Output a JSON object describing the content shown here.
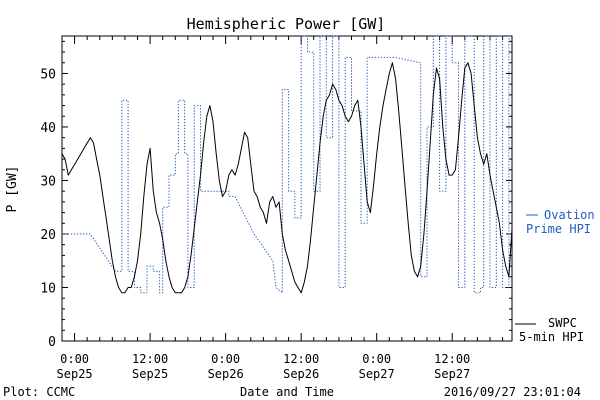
{
  "chart_data": {
    "type": "line",
    "title": "Hemispheric Power [GW]",
    "xlabel": "Date and Time",
    "ylabel": "P [GW]",
    "ylim": [
      0,
      57
    ],
    "xlim_hours": [
      -2.0,
      69.5
    ],
    "yticks": [
      0,
      10,
      20,
      30,
      40,
      50
    ],
    "xticks": [
      {
        "hour": 0,
        "time": "0:00",
        "date": "Sep25"
      },
      {
        "hour": 12,
        "time": "12:00",
        "date": "Sep25"
      },
      {
        "hour": 24,
        "time": "0:00",
        "date": "Sep26"
      },
      {
        "hour": 36,
        "time": "12:00",
        "date": "Sep26"
      },
      {
        "hour": 48,
        "time": "0:00",
        "date": "Sep27"
      },
      {
        "hour": 60,
        "time": "12:00",
        "date": "Sep27"
      }
    ],
    "grid": false,
    "legend_position": "right",
    "series": [
      {
        "name": "SWPC 5-min HPI",
        "legend_line1": "SWPC",
        "legend_line2": "5-min HPI",
        "color": "#000000",
        "style": "solid",
        "points": [
          [
            -2.0,
            35
          ],
          [
            -1.5,
            34
          ],
          [
            -1.0,
            31
          ],
          [
            -0.5,
            32
          ],
          [
            0.0,
            33
          ],
          [
            0.5,
            34
          ],
          [
            1.0,
            35
          ],
          [
            1.5,
            36
          ],
          [
            2.0,
            37
          ],
          [
            2.5,
            38
          ],
          [
            3.0,
            37
          ],
          [
            3.5,
            34
          ],
          [
            4.0,
            31
          ],
          [
            4.5,
            27
          ],
          [
            5.0,
            23
          ],
          [
            5.5,
            19
          ],
          [
            6.0,
            15
          ],
          [
            6.5,
            12
          ],
          [
            7.0,
            10
          ],
          [
            7.5,
            9
          ],
          [
            8.0,
            9
          ],
          [
            8.5,
            10
          ],
          [
            9.0,
            10
          ],
          [
            9.5,
            12
          ],
          [
            10.0,
            15
          ],
          [
            10.5,
            20
          ],
          [
            11.0,
            27
          ],
          [
            11.5,
            33
          ],
          [
            12.0,
            36
          ],
          [
            12.5,
            28
          ],
          [
            13.0,
            24
          ],
          [
            13.5,
            22
          ],
          [
            14.0,
            19
          ],
          [
            14.5,
            15
          ],
          [
            15.0,
            12
          ],
          [
            15.5,
            10
          ],
          [
            16.0,
            9
          ],
          [
            16.5,
            9
          ],
          [
            17.0,
            9
          ],
          [
            17.5,
            10
          ],
          [
            18.0,
            12
          ],
          [
            18.5,
            16
          ],
          [
            19.0,
            21
          ],
          [
            19.5,
            26
          ],
          [
            20.0,
            31
          ],
          [
            20.5,
            37
          ],
          [
            21.0,
            42
          ],
          [
            21.5,
            44
          ],
          [
            22.0,
            41
          ],
          [
            22.5,
            35
          ],
          [
            23.0,
            30
          ],
          [
            23.5,
            27
          ],
          [
            24.0,
            28
          ],
          [
            24.5,
            31
          ],
          [
            25.0,
            32
          ],
          [
            25.5,
            31
          ],
          [
            26.0,
            33
          ],
          [
            26.5,
            36
          ],
          [
            27.0,
            39
          ],
          [
            27.5,
            38
          ],
          [
            28.0,
            33
          ],
          [
            28.5,
            28
          ],
          [
            29.0,
            27
          ],
          [
            29.5,
            25
          ],
          [
            30.0,
            24
          ],
          [
            30.5,
            22
          ],
          [
            31.0,
            26
          ],
          [
            31.5,
            27
          ],
          [
            32.0,
            25
          ],
          [
            32.5,
            26
          ],
          [
            33.0,
            20
          ],
          [
            33.5,
            17
          ],
          [
            34.0,
            15
          ],
          [
            34.5,
            13
          ],
          [
            35.0,
            11
          ],
          [
            35.5,
            10
          ],
          [
            36.0,
            9
          ],
          [
            36.5,
            11
          ],
          [
            37.0,
            14
          ],
          [
            37.5,
            19
          ],
          [
            38.0,
            25
          ],
          [
            38.5,
            31
          ],
          [
            39.0,
            37
          ],
          [
            39.5,
            42
          ],
          [
            40.0,
            45
          ],
          [
            40.5,
            46
          ],
          [
            41.0,
            48
          ],
          [
            41.5,
            47
          ],
          [
            42.0,
            45
          ],
          [
            42.5,
            44
          ],
          [
            43.0,
            42
          ],
          [
            43.5,
            41
          ],
          [
            44.0,
            42
          ],
          [
            44.5,
            44
          ],
          [
            45.0,
            45
          ],
          [
            45.5,
            40
          ],
          [
            46.0,
            33
          ],
          [
            46.5,
            26
          ],
          [
            47.0,
            24
          ],
          [
            47.5,
            29
          ],
          [
            48.0,
            35
          ],
          [
            48.5,
            40
          ],
          [
            49.0,
            44
          ],
          [
            49.5,
            47
          ],
          [
            50.0,
            50
          ],
          [
            50.5,
            52
          ],
          [
            51.0,
            49
          ],
          [
            51.5,
            43
          ],
          [
            52.0,
            36
          ],
          [
            52.5,
            29
          ],
          [
            53.0,
            22
          ],
          [
            53.5,
            16
          ],
          [
            54.0,
            13
          ],
          [
            54.5,
            12
          ],
          [
            55.0,
            14
          ],
          [
            55.5,
            20
          ],
          [
            56.0,
            28
          ],
          [
            56.5,
            37
          ],
          [
            57.0,
            46
          ],
          [
            57.5,
            51
          ],
          [
            58.0,
            49
          ],
          [
            58.5,
            40
          ],
          [
            59.0,
            34
          ],
          [
            59.5,
            31
          ],
          [
            60.0,
            31
          ],
          [
            60.5,
            32
          ],
          [
            61.0,
            38
          ],
          [
            61.5,
            45
          ],
          [
            62.0,
            51
          ],
          [
            62.5,
            52
          ],
          [
            63.0,
            50
          ],
          [
            63.5,
            44
          ],
          [
            64.0,
            38
          ],
          [
            64.5,
            35
          ],
          [
            65.0,
            33
          ],
          [
            65.5,
            35
          ],
          [
            66.0,
            31
          ],
          [
            66.5,
            28
          ],
          [
            67.0,
            25
          ],
          [
            67.5,
            22
          ],
          [
            68.0,
            17
          ],
          [
            68.5,
            14
          ],
          [
            69.0,
            12
          ],
          [
            69.5,
            21
          ]
        ]
      },
      {
        "name": "Ovation Prime HPI",
        "legend_line1": "Ovation",
        "legend_line2": "Prime HPI",
        "color": "#1f5fbf",
        "style": "dotted",
        "points": [
          [
            -2.0,
            20
          ],
          [
            2.5,
            20
          ],
          [
            6.5,
            13
          ],
          [
            7.5,
            13
          ],
          [
            7.5,
            45
          ],
          [
            8.5,
            45
          ],
          [
            8.5,
            13
          ],
          [
            9.5,
            13
          ],
          [
            9.5,
            10
          ],
          [
            10.5,
            10
          ],
          [
            10.5,
            9
          ],
          [
            11.5,
            9
          ],
          [
            11.5,
            14
          ],
          [
            12.5,
            14
          ],
          [
            12.5,
            13
          ],
          [
            13.5,
            13
          ],
          [
            13.5,
            9
          ],
          [
            14.0,
            9
          ],
          [
            14.0,
            25
          ],
          [
            15.0,
            25
          ],
          [
            15.0,
            31
          ],
          [
            16.0,
            31
          ],
          [
            16.0,
            35
          ],
          [
            16.5,
            35
          ],
          [
            16.5,
            45
          ],
          [
            17.5,
            45
          ],
          [
            17.5,
            35
          ],
          [
            18.0,
            35
          ],
          [
            18.0,
            10
          ],
          [
            19.0,
            10
          ],
          [
            19.0,
            44
          ],
          [
            20.0,
            44
          ],
          [
            20.0,
            28
          ],
          [
            22.0,
            28
          ],
          [
            24.5,
            28
          ],
          [
            24.5,
            27
          ],
          [
            25.5,
            27
          ],
          [
            28.5,
            20
          ],
          [
            31.5,
            15
          ],
          [
            32.0,
            10
          ],
          [
            33.0,
            9
          ],
          [
            33.0,
            47
          ],
          [
            34.0,
            47
          ],
          [
            34.0,
            28
          ],
          [
            35.0,
            28
          ],
          [
            35.0,
            23
          ],
          [
            36.0,
            23
          ],
          [
            36.0,
            57
          ],
          [
            37.0,
            57
          ],
          [
            37.0,
            54
          ],
          [
            38.0,
            54
          ],
          [
            38.0,
            28
          ],
          [
            39.0,
            28
          ],
          [
            39.0,
            57
          ],
          [
            40.0,
            57
          ],
          [
            40.0,
            38
          ],
          [
            41.0,
            38
          ],
          [
            41.0,
            57
          ],
          [
            42.0,
            57
          ],
          [
            42.0,
            10
          ],
          [
            43.0,
            10
          ],
          [
            43.0,
            53
          ],
          [
            44.0,
            53
          ],
          [
            44.0,
            43
          ],
          [
            45.5,
            43
          ],
          [
            45.5,
            22
          ],
          [
            46.5,
            22
          ],
          [
            46.5,
            53
          ],
          [
            51.0,
            53
          ],
          [
            55.0,
            52
          ],
          [
            55.0,
            12
          ],
          [
            56.0,
            12
          ],
          [
            56.0,
            40
          ],
          [
            57.0,
            40
          ],
          [
            57.0,
            57
          ],
          [
            58.0,
            57
          ],
          [
            58.0,
            28
          ],
          [
            59.0,
            28
          ],
          [
            59.0,
            57
          ],
          [
            60.0,
            57
          ],
          [
            60.0,
            52
          ],
          [
            61.0,
            52
          ],
          [
            61.0,
            10
          ],
          [
            62.0,
            10
          ],
          [
            62.0,
            57
          ],
          [
            63.5,
            57
          ],
          [
            63.5,
            9
          ],
          [
            64.5,
            9
          ],
          [
            64.5,
            10
          ],
          [
            65.0,
            10
          ],
          [
            65.0,
            57
          ],
          [
            66.0,
            57
          ],
          [
            66.0,
            10
          ],
          [
            67.0,
            10
          ],
          [
            67.0,
            57
          ],
          [
            68.0,
            57
          ],
          [
            68.0,
            10
          ],
          [
            69.0,
            10
          ],
          [
            69.0,
            57
          ]
        ]
      }
    ]
  },
  "footer": {
    "credit": "Plot: CCMC",
    "timestamp": "2016/09/27 23:01:04"
  }
}
